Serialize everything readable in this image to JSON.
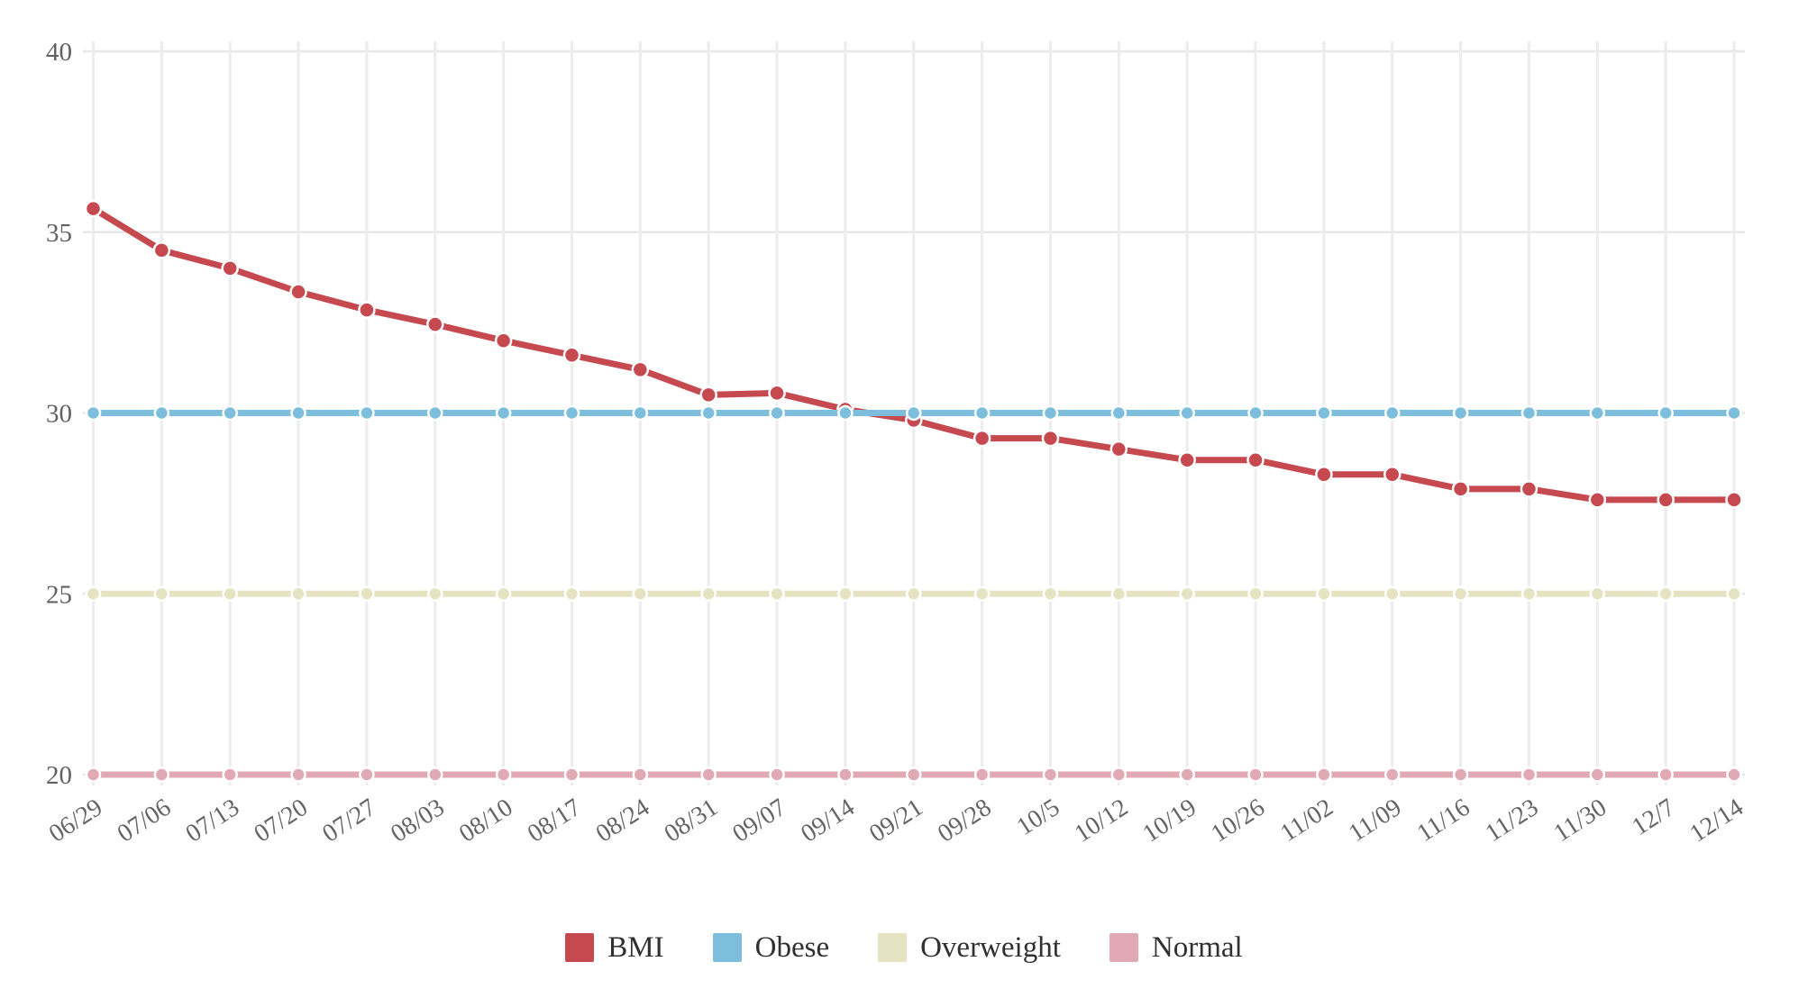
{
  "chart_data": {
    "type": "line",
    "title": "",
    "xlabel": "",
    "ylabel": "",
    "categories": [
      "06/29",
      "07/06",
      "07/13",
      "07/20",
      "07/27",
      "08/03",
      "08/10",
      "08/17",
      "08/24",
      "08/31",
      "09/07",
      "09/14",
      "09/21",
      "09/28",
      "10/5",
      "10/12",
      "10/19",
      "10/26",
      "11/02",
      "11/09",
      "11/16",
      "11/23",
      "11/30",
      "12/7",
      "12/14"
    ],
    "series": [
      {
        "name": "BMI",
        "color": "#c5494f",
        "point_radius": 8.5,
        "values": [
          35.65,
          34.5,
          34.0,
          33.35,
          32.85,
          32.45,
          32.0,
          31.6,
          31.2,
          30.5,
          30.55,
          30.1,
          29.8,
          29.3,
          29.3,
          29.0,
          28.7,
          28.7,
          28.3,
          28.3,
          27.9,
          27.9,
          27.6,
          27.6,
          27.6
        ]
      },
      {
        "name": "Obese",
        "color": "#7cbedb",
        "point_radius": 7.5,
        "values": [
          30,
          30,
          30,
          30,
          30,
          30,
          30,
          30,
          30,
          30,
          30,
          30,
          30,
          30,
          30,
          30,
          30,
          30,
          30,
          30,
          30,
          30,
          30,
          30,
          30
        ]
      },
      {
        "name": "Overweight",
        "color": "#e6e3c2",
        "point_radius": 7.5,
        "values": [
          25,
          25,
          25,
          25,
          25,
          25,
          25,
          25,
          25,
          25,
          25,
          25,
          25,
          25,
          25,
          25,
          25,
          25,
          25,
          25,
          25,
          25,
          25,
          25,
          25
        ]
      },
      {
        "name": "Normal",
        "color": "#e0a9b4",
        "point_radius": 7.5,
        "values": [
          20,
          20,
          20,
          20,
          20,
          20,
          20,
          20,
          20,
          20,
          20,
          20,
          20,
          20,
          20,
          20,
          20,
          20,
          20,
          20,
          20,
          20,
          20,
          20,
          20
        ]
      }
    ],
    "ylim": [
      20,
      40
    ],
    "yticks": [
      20,
      25,
      30,
      35,
      40
    ],
    "grid": true,
    "legend_position": "bottom",
    "x_label_rotation_deg": -33
  },
  "style": {
    "grid_color_h": "#e7e7e7",
    "grid_color_v": "#ececec",
    "point_border_color": "#ffffff",
    "background": "#ffffff"
  },
  "legend": {
    "items": [
      {
        "label": "BMI"
      },
      {
        "label": "Obese"
      },
      {
        "label": "Overweight"
      },
      {
        "label": "Normal"
      }
    ]
  }
}
